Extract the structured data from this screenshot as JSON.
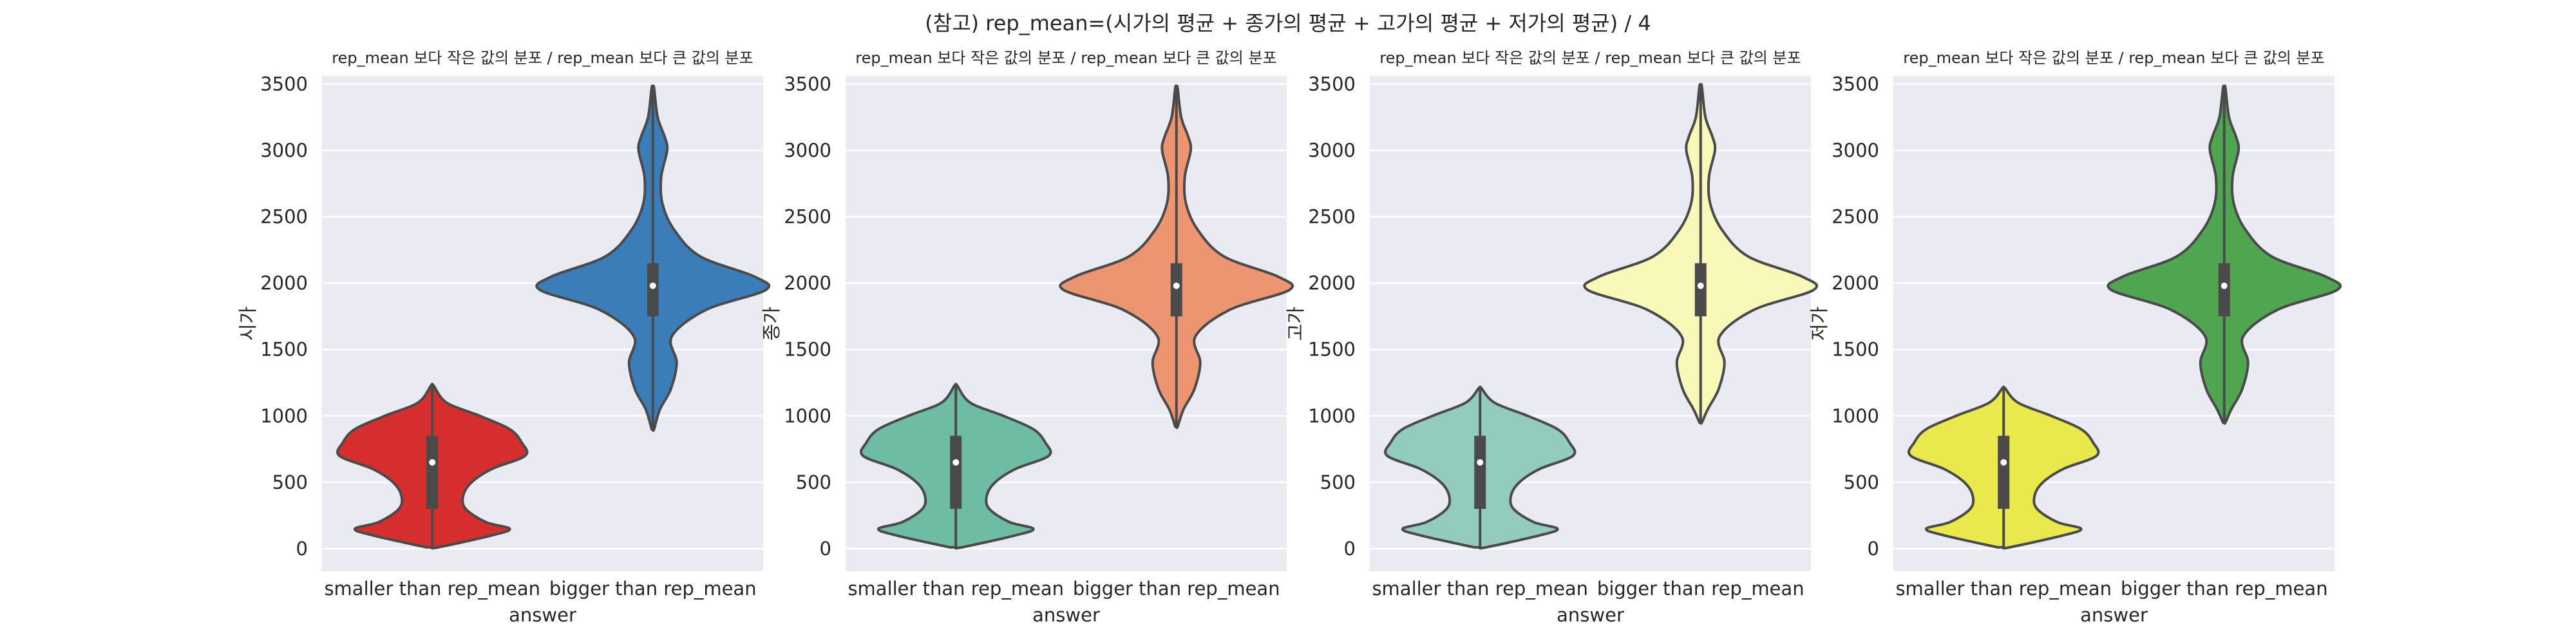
{
  "figure": {
    "suptitle": "(참고) rep_mean=(시가의 평균 + 종가의 평균 + 고가의 평균 + 저가의 평균) / 4"
  },
  "chart_data": [
    {
      "type": "violin",
      "title": "rep_mean 보다 작은 값의 분포 / rep_mean 보다 큰 값의 분포",
      "xlabel": "answer",
      "ylabel": "시가",
      "categories": [
        "smaller than rep_mean",
        "bigger than rep_mean"
      ],
      "ylim": [
        -170,
        3560
      ],
      "yticks": [
        0,
        500,
        1000,
        1500,
        2000,
        2500,
        3000,
        3500
      ],
      "grid": true,
      "series": [
        {
          "category": "smaller than rep_mean",
          "color": "#d62e2e",
          "min": 10,
          "max": 1230,
          "q1": 300,
          "median": 650,
          "q3": 850,
          "density": [
            [
              10,
              0.05
            ],
            [
              100,
              0.5
            ],
            [
              150,
              0.65
            ],
            [
              200,
              0.45
            ],
            [
              300,
              0.28
            ],
            [
              400,
              0.26
            ],
            [
              500,
              0.33
            ],
            [
              600,
              0.5
            ],
            [
              700,
              0.78
            ],
            [
              800,
              0.75
            ],
            [
              900,
              0.65
            ],
            [
              1000,
              0.4
            ],
            [
              1100,
              0.12
            ],
            [
              1230,
              0.01
            ]
          ]
        },
        {
          "category": "bigger than rep_mean",
          "color": "#3b7db8",
          "min": 900,
          "max": 3470,
          "q1": 1750,
          "median": 1980,
          "q3": 2150,
          "density": [
            [
              900,
              0.01
            ],
            [
              1050,
              0.06
            ],
            [
              1200,
              0.15
            ],
            [
              1400,
              0.2
            ],
            [
              1600,
              0.16
            ],
            [
              1800,
              0.45
            ],
            [
              1950,
              0.95
            ],
            [
              2050,
              0.85
            ],
            [
              2200,
              0.4
            ],
            [
              2400,
              0.18
            ],
            [
              2600,
              0.08
            ],
            [
              2800,
              0.07
            ],
            [
              3000,
              0.12
            ],
            [
              3100,
              0.1
            ],
            [
              3250,
              0.04
            ],
            [
              3470,
              0.01
            ]
          ]
        }
      ]
    },
    {
      "type": "violin",
      "title": "rep_mean 보다 작은 값의 분포 / rep_mean 보다 큰 값의 분포",
      "xlabel": "answer",
      "ylabel": "종가",
      "categories": [
        "smaller than rep_mean",
        "bigger than rep_mean"
      ],
      "ylim": [
        -170,
        3560
      ],
      "yticks": [
        0,
        500,
        1000,
        1500,
        2000,
        2500,
        3000,
        3500
      ],
      "grid": true,
      "series": [
        {
          "category": "smaller than rep_mean",
          "color": "#6dbca3",
          "min": 10,
          "max": 1230,
          "q1": 300,
          "median": 650,
          "q3": 850,
          "density": [
            [
              10,
              0.05
            ],
            [
              100,
              0.5
            ],
            [
              150,
              0.65
            ],
            [
              200,
              0.45
            ],
            [
              300,
              0.28
            ],
            [
              400,
              0.26
            ],
            [
              500,
              0.33
            ],
            [
              600,
              0.5
            ],
            [
              700,
              0.78
            ],
            [
              800,
              0.75
            ],
            [
              900,
              0.65
            ],
            [
              1000,
              0.4
            ],
            [
              1100,
              0.12
            ],
            [
              1230,
              0.01
            ]
          ]
        },
        {
          "category": "bigger than rep_mean",
          "color": "#ed9470",
          "min": 920,
          "max": 3470,
          "q1": 1750,
          "median": 1980,
          "q3": 2150,
          "density": [
            [
              920,
              0.01
            ],
            [
              1050,
              0.06
            ],
            [
              1200,
              0.15
            ],
            [
              1400,
              0.2
            ],
            [
              1600,
              0.16
            ],
            [
              1800,
              0.45
            ],
            [
              1950,
              0.95
            ],
            [
              2050,
              0.85
            ],
            [
              2200,
              0.4
            ],
            [
              2400,
              0.18
            ],
            [
              2600,
              0.08
            ],
            [
              2800,
              0.07
            ],
            [
              3000,
              0.12
            ],
            [
              3100,
              0.1
            ],
            [
              3250,
              0.04
            ],
            [
              3470,
              0.01
            ]
          ]
        }
      ]
    },
    {
      "type": "violin",
      "title": "rep_mean 보다 작은 값의 분포 / rep_mean 보다 큰 값의 분포",
      "xlabel": "answer",
      "ylabel": "고가",
      "categories": [
        "smaller than rep_mean",
        "bigger than rep_mean"
      ],
      "ylim": [
        -170,
        3560
      ],
      "yticks": [
        0,
        500,
        1000,
        1500,
        2000,
        2500,
        3000,
        3500
      ],
      "grid": true,
      "series": [
        {
          "category": "smaller than rep_mean",
          "color": "#93ccbf",
          "min": 10,
          "max": 1210,
          "q1": 300,
          "median": 650,
          "q3": 850,
          "density": [
            [
              10,
              0.05
            ],
            [
              100,
              0.5
            ],
            [
              150,
              0.65
            ],
            [
              200,
              0.45
            ],
            [
              300,
              0.28
            ],
            [
              400,
              0.26
            ],
            [
              500,
              0.33
            ],
            [
              600,
              0.5
            ],
            [
              700,
              0.78
            ],
            [
              800,
              0.75
            ],
            [
              900,
              0.65
            ],
            [
              1000,
              0.4
            ],
            [
              1100,
              0.12
            ],
            [
              1210,
              0.01
            ]
          ]
        },
        {
          "category": "bigger than rep_mean",
          "color": "#f8f9b9",
          "min": 950,
          "max": 3480,
          "q1": 1750,
          "median": 1980,
          "q3": 2150,
          "density": [
            [
              950,
              0.01
            ],
            [
              1050,
              0.06
            ],
            [
              1200,
              0.15
            ],
            [
              1400,
              0.2
            ],
            [
              1600,
              0.16
            ],
            [
              1800,
              0.45
            ],
            [
              1950,
              0.95
            ],
            [
              2050,
              0.85
            ],
            [
              2200,
              0.4
            ],
            [
              2400,
              0.18
            ],
            [
              2600,
              0.08
            ],
            [
              2800,
              0.07
            ],
            [
              3000,
              0.12
            ],
            [
              3100,
              0.1
            ],
            [
              3250,
              0.04
            ],
            [
              3480,
              0.01
            ]
          ]
        }
      ]
    },
    {
      "type": "violin",
      "title": "rep_mean 보다 작은 값의 분포 / rep_mean 보다 큰 값의 분포",
      "xlabel": "answer",
      "ylabel": "저가",
      "categories": [
        "smaller than rep_mean",
        "bigger than rep_mean"
      ],
      "ylim": [
        -170,
        3560
      ],
      "yticks": [
        0,
        500,
        1000,
        1500,
        2000,
        2500,
        3000,
        3500
      ],
      "grid": true,
      "series": [
        {
          "category": "smaller than rep_mean",
          "color": "#e9e84d",
          "min": 10,
          "max": 1210,
          "q1": 300,
          "median": 650,
          "q3": 850,
          "density": [
            [
              10,
              0.05
            ],
            [
              100,
              0.5
            ],
            [
              150,
              0.65
            ],
            [
              200,
              0.45
            ],
            [
              300,
              0.28
            ],
            [
              400,
              0.26
            ],
            [
              500,
              0.33
            ],
            [
              600,
              0.5
            ],
            [
              700,
              0.78
            ],
            [
              800,
              0.75
            ],
            [
              900,
              0.65
            ],
            [
              1000,
              0.4
            ],
            [
              1100,
              0.12
            ],
            [
              1210,
              0.01
            ]
          ]
        },
        {
          "category": "bigger than rep_mean",
          "color": "#50a650",
          "min": 950,
          "max": 3470,
          "q1": 1750,
          "median": 1980,
          "q3": 2150,
          "density": [
            [
              950,
              0.01
            ],
            [
              1050,
              0.06
            ],
            [
              1200,
              0.15
            ],
            [
              1400,
              0.2
            ],
            [
              1600,
              0.16
            ],
            [
              1800,
              0.45
            ],
            [
              1950,
              0.95
            ],
            [
              2050,
              0.85
            ],
            [
              2200,
              0.4
            ],
            [
              2400,
              0.18
            ],
            [
              2600,
              0.08
            ],
            [
              2800,
              0.07
            ],
            [
              3000,
              0.12
            ],
            [
              3100,
              0.1
            ],
            [
              3250,
              0.04
            ],
            [
              3470,
              0.01
            ]
          ]
        }
      ]
    }
  ]
}
